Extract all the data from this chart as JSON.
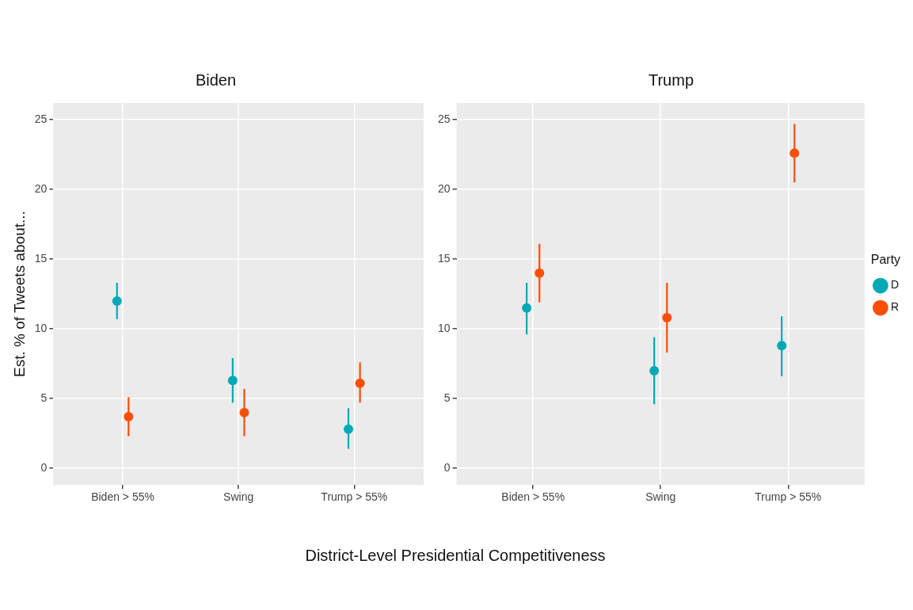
{
  "chart_data": [
    {
      "type": "scatter",
      "title": "Biden",
      "ylabel": "Est. % of Tweets about...",
      "xlabel": "District-Level Presidential Competitiveness",
      "categories": [
        "Biden > 55%",
        "Swing",
        "Trump > 55%"
      ],
      "ylim": [
        -1.2,
        26.2
      ],
      "yticks": [
        0,
        5,
        10,
        15,
        20,
        25
      ],
      "grid": true,
      "legend": false,
      "marker": "circle",
      "series": [
        {
          "color": "#00a9b5",
          "values": [
            12.0,
            6.3,
            2.8
          ],
          "errors": [
            [
              10.7,
              13.3
            ],
            [
              4.7,
              7.9
            ],
            [
              1.4,
              4.3
            ]
          ]
        },
        {
          "color": "#fc4e07",
          "values": [
            3.7,
            4.0,
            6.1
          ],
          "errors": [
            [
              2.3,
              5.1
            ],
            [
              2.3,
              5.7
            ],
            [
              4.7,
              7.6
            ]
          ]
        }
      ]
    },
    {
      "type": "scatter",
      "title": "Trump",
      "legend_title": "Party",
      "categories": [
        "Biden > 55%",
        "Swing",
        "Trump > 55%"
      ],
      "ylim": [
        -1.2,
        26.2
      ],
      "yticks": [
        0,
        5,
        10,
        15,
        20,
        25
      ],
      "grid": true,
      "legend": "right",
      "marker": "circle",
      "series": [
        {
          "name": "D",
          "color": "#00a9b5",
          "values": [
            11.5,
            7.0,
            8.8
          ],
          "errors": [
            [
              9.6,
              13.3
            ],
            [
              4.6,
              9.4
            ],
            [
              6.6,
              10.9
            ]
          ]
        },
        {
          "name": "R",
          "color": "#fc4e07",
          "values": [
            14.0,
            10.8,
            22.6
          ],
          "errors": [
            [
              11.9,
              16.1
            ],
            [
              8.3,
              13.3
            ],
            [
              20.5,
              24.7
            ]
          ]
        }
      ]
    }
  ]
}
